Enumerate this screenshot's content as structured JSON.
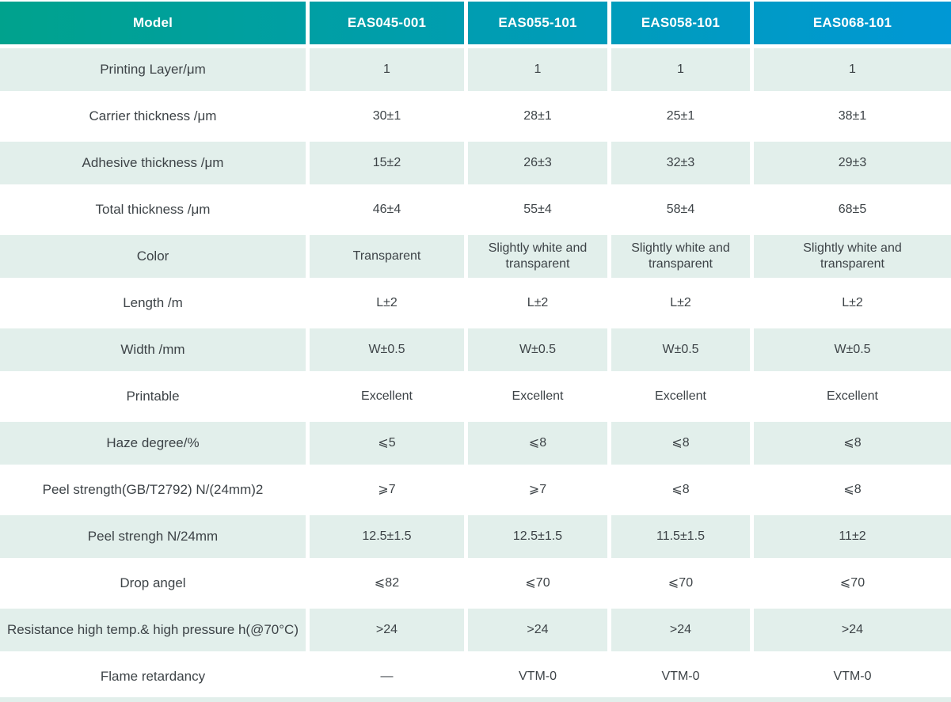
{
  "table": {
    "header": {
      "model": "Model",
      "columns": [
        "EAS045-001",
        "EAS055-101",
        "EAS058-101",
        "EAS068-101"
      ]
    },
    "rows": [
      {
        "label": "Printing Layer/μm",
        "values": [
          "1",
          "1",
          "1",
          "1"
        ]
      },
      {
        "label": "Carrier thickness /μm",
        "values": [
          "30±1",
          "28±1",
          "25±1",
          "38±1"
        ]
      },
      {
        "label": "Adhesive thickness /μm",
        "values": [
          "15±2",
          "26±3",
          "32±3",
          "29±3"
        ]
      },
      {
        "label": "Total thickness /μm",
        "values": [
          "46±4",
          "55±4",
          "58±4",
          "68±5"
        ]
      },
      {
        "label": "Color",
        "values": [
          "Transparent",
          "Slightly white and transparent",
          "Slightly white and transparent",
          "Slightly white and transparent"
        ]
      },
      {
        "label": "Length /m",
        "values": [
          "L±2",
          "L±2",
          "L±2",
          "L±2"
        ]
      },
      {
        "label": "Width /mm",
        "values": [
          "W±0.5",
          "W±0.5",
          "W±0.5",
          "W±0.5"
        ]
      },
      {
        "label": "Printable",
        "values": [
          "Excellent",
          "Excellent",
          "Excellent",
          "Excellent"
        ]
      },
      {
        "label": "Haze degree/%",
        "values": [
          "⩽5",
          "⩽8",
          "⩽8",
          "⩽8"
        ]
      },
      {
        "label": "Peel strength(GB/T2792) N/(24mm)2",
        "values": [
          "⩾7",
          "⩾7",
          "⩽8",
          "⩽8"
        ]
      },
      {
        "label": "Peel strengh N/24mm",
        "values": [
          "12.5±1.5",
          "12.5±1.5",
          "11.5±1.5",
          "11±2"
        ]
      },
      {
        "label": "Drop angel",
        "values": [
          "⩽82",
          "⩽70",
          "⩽70",
          "⩽70"
        ]
      },
      {
        "label": "Resistance high temp.& high pressure h(@70°C)",
        "values": [
          ">24",
          ">24",
          ">24",
          ">24"
        ]
      },
      {
        "label": "Flame retardancy",
        "values": [
          "—",
          "VTM-0",
          "VTM-0",
          "VTM-0"
        ]
      }
    ],
    "colors": {
      "header_gradient_start": "#00a28d",
      "header_gradient_end": "#0098d5",
      "row_alt_bg": "#e2efeb",
      "header_text": "#ffffff",
      "body_text": "#3d4347"
    }
  }
}
